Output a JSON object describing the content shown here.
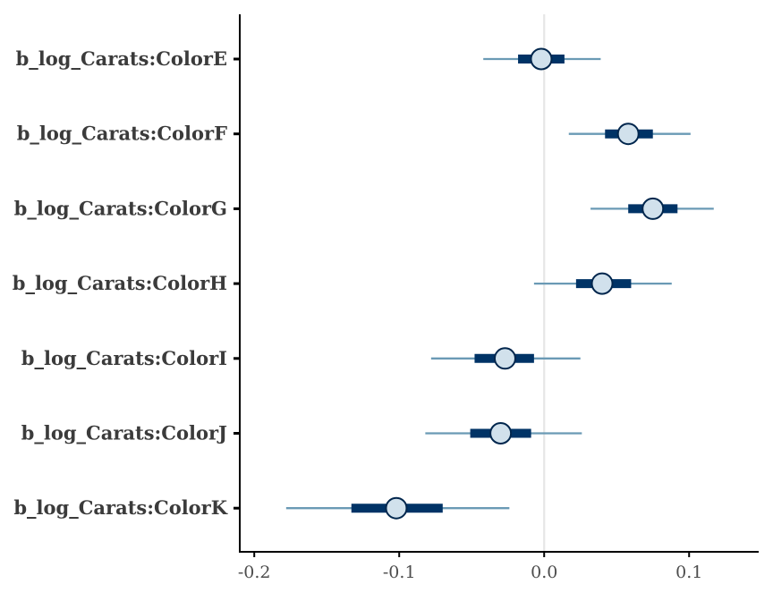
{
  "chart_data": {
    "type": "interval",
    "title": "",
    "xlabel": "",
    "ylabel": "",
    "xlim": [
      -0.21,
      0.148
    ],
    "x_ticks": [
      -0.2,
      -0.1,
      0.0,
      0.1
    ],
    "x_tick_labels": [
      "-0.2",
      "-0.1",
      "0.0",
      "0.1"
    ],
    "reference_line_x": 0,
    "parameters": [
      {
        "label": "b_log_Carats:ColorE",
        "estimate": -0.002,
        "inner": [
          -0.018,
          0.014
        ],
        "outer": [
          -0.042,
          0.039
        ]
      },
      {
        "label": "b_log_Carats:ColorF",
        "estimate": 0.058,
        "inner": [
          0.042,
          0.075
        ],
        "outer": [
          0.017,
          0.101
        ]
      },
      {
        "label": "b_log_Carats:ColorG",
        "estimate": 0.075,
        "inner": [
          0.058,
          0.092
        ],
        "outer": [
          0.032,
          0.117
        ]
      },
      {
        "label": "b_log_Carats:ColorH",
        "estimate": 0.04,
        "inner": [
          0.022,
          0.06
        ],
        "outer": [
          -0.007,
          0.088
        ]
      },
      {
        "label": "b_log_Carats:ColorI",
        "estimate": -0.027,
        "inner": [
          -0.048,
          -0.007
        ],
        "outer": [
          -0.078,
          0.025
        ]
      },
      {
        "label": "b_log_Carats:ColorJ",
        "estimate": -0.03,
        "inner": [
          -0.051,
          -0.009
        ],
        "outer": [
          -0.082,
          0.026
        ]
      },
      {
        "label": "b_log_Carats:ColorK",
        "estimate": -0.102,
        "inner": [
          -0.133,
          -0.07
        ],
        "outer": [
          -0.178,
          -0.024
        ]
      }
    ],
    "colors": {
      "outer_line": "#6a9ab5",
      "inner_bar": "#003366",
      "point_fill": "#d1e1ec",
      "point_stroke": "#00264d",
      "reference_line": "#e6e6e6",
      "axis": "#000000",
      "label_text": "#3b3b3b"
    }
  }
}
